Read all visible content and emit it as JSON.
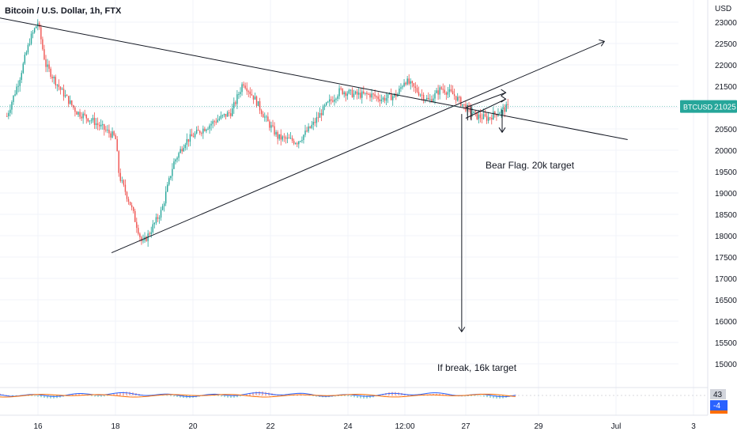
{
  "header": {
    "symbol_title": "Bitcoin / U.S. Dollar, 1h, FTX"
  },
  "price_axis": {
    "currency": "USD",
    "ticks": [
      23000,
      22500,
      22000,
      21500,
      21000,
      20500,
      20000,
      19500,
      19000,
      18500,
      18000,
      17500,
      17000,
      16500,
      16000,
      15500,
      15000
    ]
  },
  "time_axis": {
    "ticks": [
      "16",
      "18",
      "20",
      "22",
      "24",
      "12:00",
      "27",
      "29",
      "Jul",
      "3"
    ]
  },
  "price_badge": {
    "label": "BTCUSD",
    "value": "21025"
  },
  "annotations": [
    {
      "text": "Bear Flag. 20k target"
    },
    {
      "text": "If break, 16k target"
    }
  ],
  "oscillator": {
    "value_1": "43",
    "value_2": "-4"
  },
  "colors": {
    "up": "#26a69a",
    "down": "#ef5350",
    "line": "#131722",
    "badge": "#26a69a",
    "grid": "#f0f3fa",
    "osc_blue": "#2962ff",
    "osc_orange": "#ff6d00"
  },
  "chart_data": {
    "type": "candlestick",
    "title": "Bitcoin / U.S. Dollar, 1h, FTX",
    "ylabel": "USD",
    "ylim": [
      14800,
      23200
    ],
    "x_tick_labels": [
      "16",
      "18",
      "20",
      "22",
      "24",
      "12:00",
      "27",
      "29",
      "Jul",
      "3"
    ],
    "price_path": [
      [
        15.2,
        20800
      ],
      [
        15.5,
        21600
      ],
      [
        15.8,
        22600
      ],
      [
        16.0,
        23000
      ],
      [
        16.2,
        22000
      ],
      [
        16.6,
        21400
      ],
      [
        17.0,
        20900
      ],
      [
        17.4,
        20700
      ],
      [
        18.0,
        20300
      ],
      [
        18.1,
        19400
      ],
      [
        18.4,
        18700
      ],
      [
        18.7,
        17800
      ],
      [
        18.9,
        18100
      ],
      [
        19.2,
        18600
      ],
      [
        19.5,
        19700
      ],
      [
        19.8,
        20200
      ],
      [
        20.1,
        20400
      ],
      [
        20.6,
        20700
      ],
      [
        21.0,
        20900
      ],
      [
        21.3,
        21600
      ],
      [
        21.6,
        21200
      ],
      [
        21.9,
        20700
      ],
      [
        22.2,
        20300
      ],
      [
        22.7,
        20200
      ],
      [
        23.1,
        20600
      ],
      [
        23.4,
        21000
      ],
      [
        23.8,
        21400
      ],
      [
        24.2,
        21300
      ],
      [
        24.6,
        21300
      ],
      [
        24.9,
        21200
      ],
      [
        25.3,
        21300
      ],
      [
        25.5,
        21650
      ],
      [
        25.8,
        21400
      ],
      [
        26.1,
        21150
      ],
      [
        26.4,
        21450
      ],
      [
        26.7,
        21300
      ],
      [
        27.0,
        21000
      ],
      [
        27.3,
        20800
      ],
      [
        27.6,
        20750
      ],
      [
        27.9,
        20900
      ],
      [
        28.2,
        21025
      ]
    ],
    "last_price": 21025,
    "trendlines": [
      {
        "from": [
          15.0,
          23100
        ],
        "to": [
          31.3,
          20250
        ]
      },
      {
        "from": [
          17.9,
          17600
        ],
        "to": [
          30.7,
          22550
        ]
      }
    ],
    "flag_channel": [
      {
        "from": [
          27.0,
          21000
        ],
        "to": [
          28.1,
          21350
        ]
      },
      {
        "from": [
          27.0,
          20750
        ],
        "to": [
          28.1,
          21200
        ]
      }
    ],
    "target_arrows": [
      {
        "label": "Bear Flag. 20k target",
        "x": 28.0,
        "from": 20950,
        "to": 20420
      },
      {
        "label": "If break, 16k target",
        "x": 26.9,
        "from": 20850,
        "to": 15750
      }
    ],
    "oscillator": {
      "value_1": 43,
      "value_2": -4
    }
  }
}
